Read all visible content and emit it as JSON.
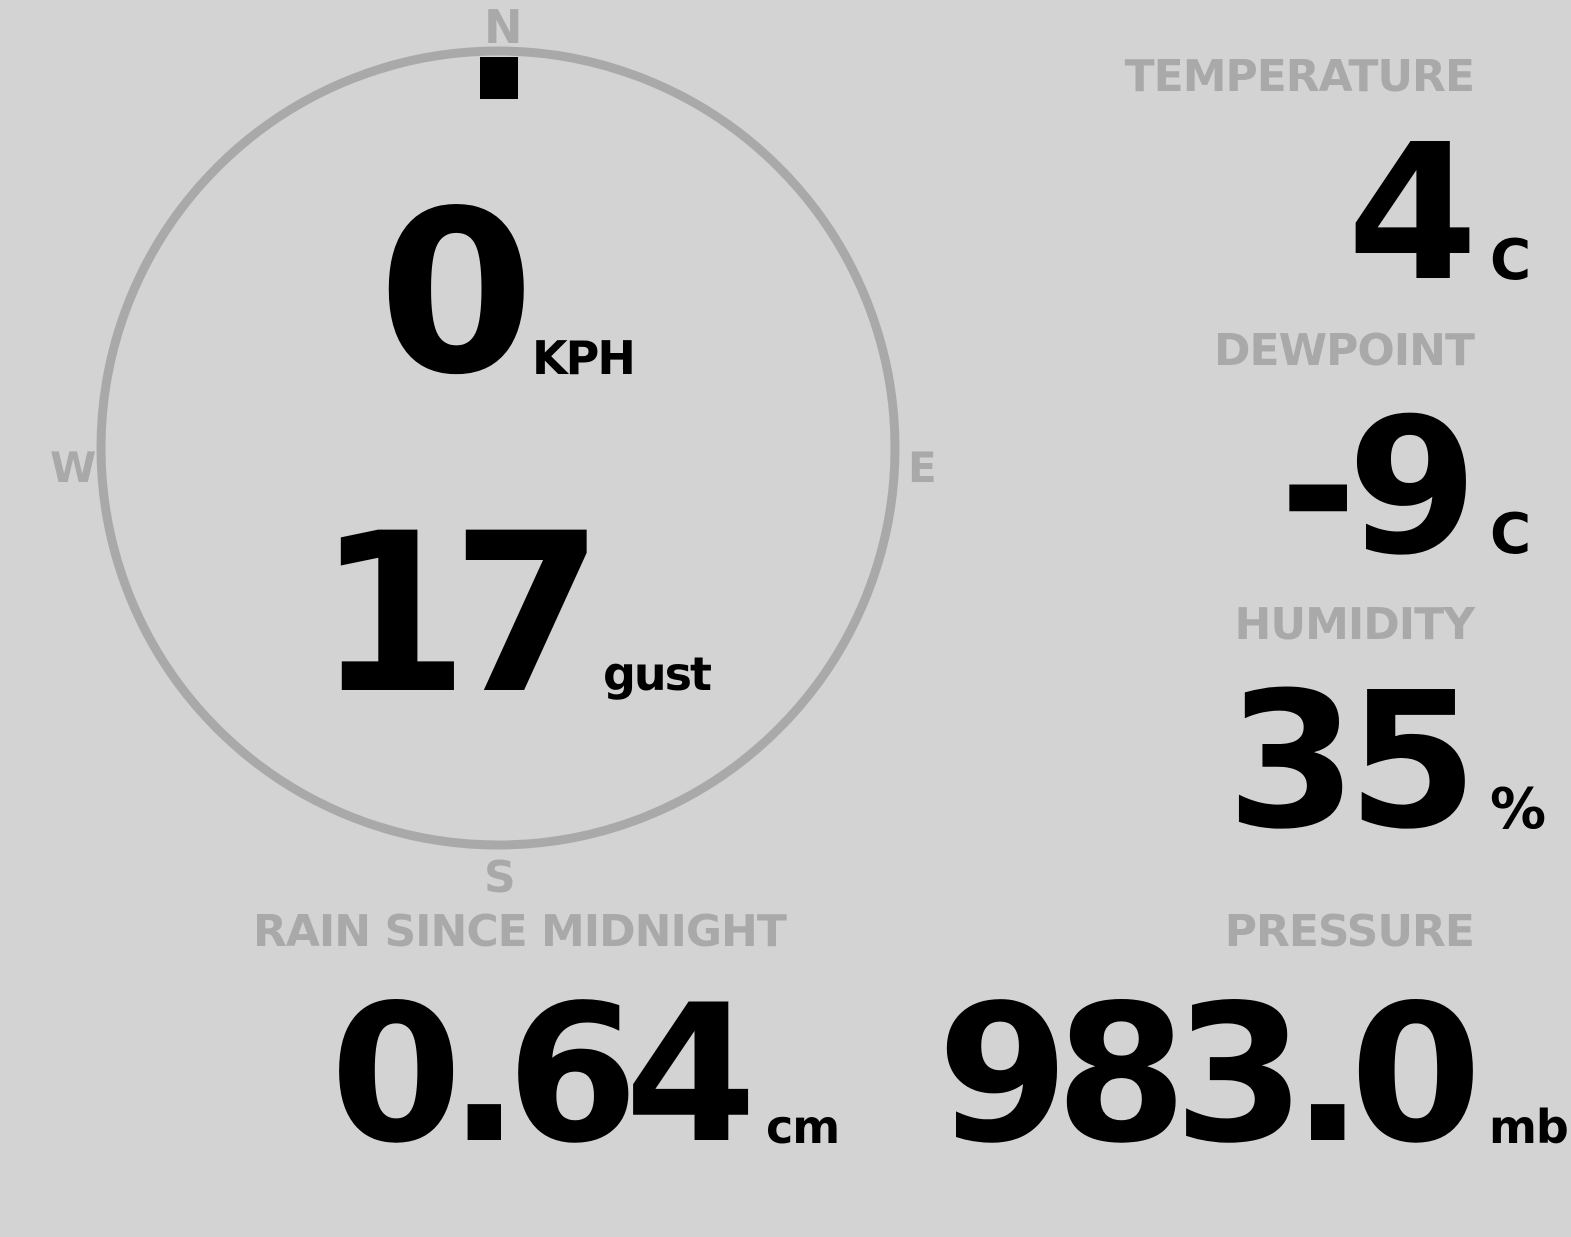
{
  "colors": {
    "background": "#d3d3d3",
    "muted": "#a9a9a9",
    "text": "#000000"
  },
  "wind": {
    "speed": "0",
    "speed_unit": "KPH",
    "gust": "17",
    "gust_unit": "gust",
    "direction_deg": 0,
    "compass": {
      "n": "N",
      "e": "E",
      "s": "S",
      "w": "W"
    }
  },
  "temperature": {
    "label": "TEMPERATURE",
    "value": "4",
    "unit": "C"
  },
  "dewpoint": {
    "label": "DEWPOINT",
    "value": "-9",
    "unit": "C"
  },
  "humidity": {
    "label": "HUMIDITY",
    "value": "35",
    "unit": "%"
  },
  "rain": {
    "label": "RAIN SINCE MIDNIGHT",
    "value": "0.64",
    "unit": "cm"
  },
  "pressure": {
    "label": "PRESSURE",
    "value": "983.0",
    "unit": "mb"
  }
}
